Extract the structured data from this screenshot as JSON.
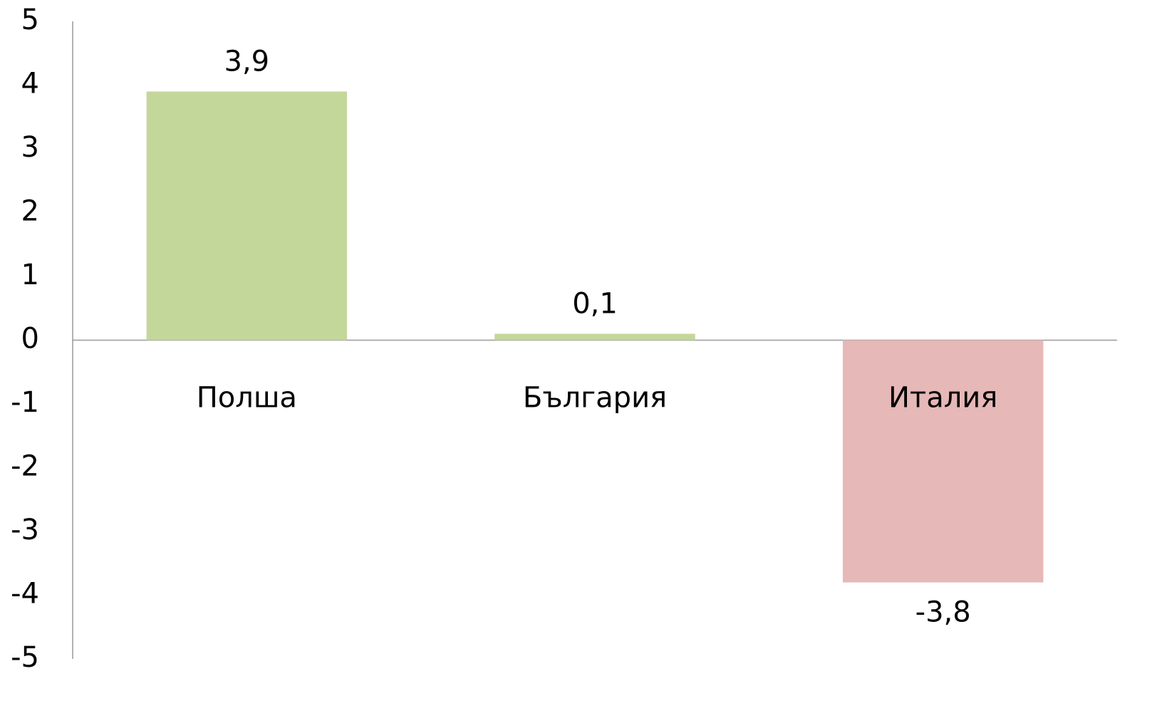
{
  "chart_data": {
    "type": "bar",
    "categories": [
      "Полша",
      "България",
      "Италия"
    ],
    "values": [
      3.9,
      0.1,
      -3.8
    ],
    "value_labels": [
      "3,9",
      "0,1",
      "-3,8"
    ],
    "colors": [
      "#c4d79b",
      "#c4d79b",
      "#e6b8b7"
    ],
    "ylim": [
      -5,
      5
    ],
    "yticks": [
      -5,
      -4,
      -3,
      -2,
      -1,
      0,
      1,
      2,
      3,
      4,
      5
    ],
    "grid": false
  }
}
